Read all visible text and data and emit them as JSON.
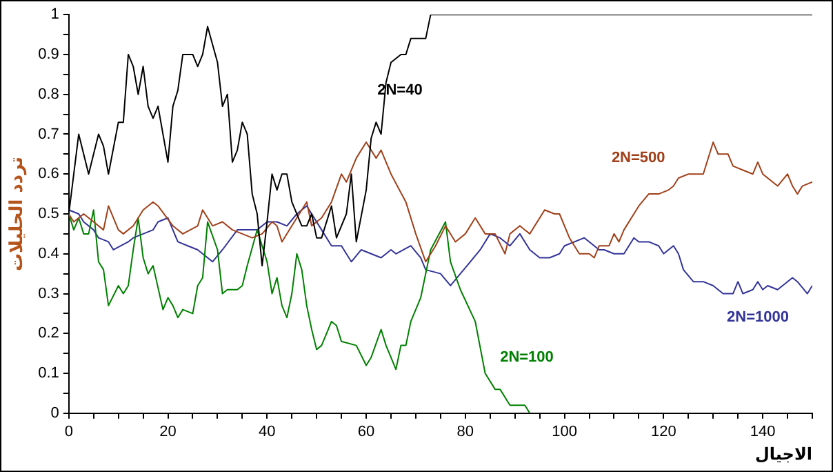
{
  "chart_data": {
    "type": "line",
    "xlabel": "الاجيال",
    "ylabel": "تردد الحليلات",
    "xlim": [
      0,
      150
    ],
    "ylim": [
      0,
      1
    ],
    "xticks": [
      0,
      {
        "value": 5,
        "label": null
      },
      {
        "value": 10,
        "label": null
      },
      {
        "value": 15,
        "label": null
      },
      20,
      {
        "value": 25,
        "label": null
      },
      {
        "value": 30,
        "label": null
      },
      {
        "value": 35,
        "label": null
      },
      40,
      {
        "value": 45,
        "label": null
      },
      {
        "value": 50,
        "label": null
      },
      {
        "value": 55,
        "label": null
      },
      60,
      {
        "value": 65,
        "label": null
      },
      {
        "value": 70,
        "label": null
      },
      {
        "value": 75,
        "label": null
      },
      80,
      {
        "value": 85,
        "label": null
      },
      {
        "value": 90,
        "label": null
      },
      {
        "value": 95,
        "label": null
      },
      100,
      {
        "value": 105,
        "label": null
      },
      {
        "value": 110,
        "label": null
      },
      {
        "value": 115,
        "label": null
      },
      120,
      {
        "value": 125,
        "label": null
      },
      {
        "value": 130,
        "label": null
      },
      {
        "value": 135,
        "label": null
      },
      140,
      {
        "value": 145,
        "label": null
      },
      {
        "value": 150,
        "label": null
      }
    ],
    "yticks": [
      0,
      {
        "value": 0.05,
        "label": null
      },
      0.1,
      {
        "value": 0.15,
        "label": null
      },
      0.2,
      {
        "value": 0.25,
        "label": null
      },
      0.3,
      {
        "value": 0.35,
        "label": null
      },
      0.4,
      {
        "value": 0.45,
        "label": null
      },
      0.5,
      {
        "value": 0.55,
        "label": null
      },
      0.6,
      {
        "value": 0.65,
        "label": null
      },
      0.7,
      {
        "value": 0.75,
        "label": null
      },
      0.8,
      {
        "value": 0.85,
        "label": null
      },
      0.9,
      {
        "value": 0.95,
        "label": null
      },
      1
    ],
    "grid": false,
    "legend": false,
    "marker": "none",
    "line_style": "solid",
    "series": [
      {
        "name": "2N=40",
        "color": "#000000",
        "x": [
          0,
          2,
          4,
          6,
          7,
          8,
          10,
          11,
          12,
          13,
          14,
          15,
          16,
          17,
          18,
          20,
          21,
          22,
          23,
          25,
          26,
          27,
          28,
          30,
          31,
          32,
          33,
          34,
          35,
          36,
          37,
          38,
          39,
          40,
          41,
          42,
          43,
          44,
          45,
          47,
          48,
          49,
          50,
          51,
          53,
          54,
          56,
          57,
          58,
          60,
          61,
          62,
          63,
          64,
          65,
          67,
          68,
          69,
          72,
          73,
          150
        ],
        "values": [
          0.5,
          0.7,
          0.6,
          0.7,
          0.67,
          0.6,
          0.73,
          0.73,
          0.9,
          0.87,
          0.8,
          0.87,
          0.77,
          0.74,
          0.77,
          0.63,
          0.77,
          0.81,
          0.9,
          0.9,
          0.87,
          0.9,
          0.97,
          0.88,
          0.77,
          0.8,
          0.63,
          0.66,
          0.73,
          0.7,
          0.55,
          0.5,
          0.37,
          0.48,
          0.6,
          0.56,
          0.6,
          0.6,
          0.53,
          0.47,
          0.47,
          0.5,
          0.44,
          0.44,
          0.52,
          0.44,
          0.5,
          0.6,
          0.43,
          0.56,
          0.69,
          0.73,
          0.7,
          0.83,
          0.88,
          0.9,
          0.9,
          0.94,
          0.94,
          1,
          1
        ]
      },
      {
        "name": "2N=500",
        "color": "#a0401a",
        "x": [
          0,
          1,
          3,
          5,
          7,
          8,
          10,
          11,
          13,
          15,
          16,
          17,
          18,
          21,
          23,
          26,
          27,
          29,
          31,
          33,
          35,
          37,
          39,
          41,
          42,
          43,
          45,
          46,
          48,
          49,
          51,
          53,
          55,
          56,
          58,
          60,
          62,
          63,
          65,
          68,
          70,
          72,
          74,
          76,
          78,
          80,
          82,
          84,
          86,
          88,
          89,
          91,
          93,
          96,
          98,
          99,
          101,
          103,
          105,
          106,
          107,
          109,
          110,
          111,
          112,
          115,
          117,
          119,
          121,
          122,
          123,
          125,
          128,
          130,
          131,
          133,
          134,
          136,
          138,
          139,
          140,
          142,
          143,
          145,
          146,
          147,
          148,
          150
        ],
        "values": [
          0.5,
          0.48,
          0.5,
          0.48,
          0.46,
          0.52,
          0.46,
          0.45,
          0.47,
          0.51,
          0.52,
          0.53,
          0.52,
          0.47,
          0.45,
          0.47,
          0.51,
          0.47,
          0.48,
          0.46,
          0.45,
          0.44,
          0.45,
          0.48,
          0.47,
          0.43,
          0.47,
          0.49,
          0.53,
          0.47,
          0.49,
          0.53,
          0.6,
          0.58,
          0.64,
          0.68,
          0.64,
          0.66,
          0.6,
          0.53,
          0.45,
          0.38,
          0.42,
          0.47,
          0.43,
          0.45,
          0.49,
          0.45,
          0.45,
          0.4,
          0.45,
          0.47,
          0.45,
          0.51,
          0.5,
          0.5,
          0.44,
          0.4,
          0.4,
          0.39,
          0.42,
          0.42,
          0.45,
          0.43,
          0.46,
          0.52,
          0.55,
          0.55,
          0.56,
          0.57,
          0.59,
          0.6,
          0.6,
          0.68,
          0.65,
          0.65,
          0.62,
          0.61,
          0.6,
          0.63,
          0.6,
          0.58,
          0.57,
          0.6,
          0.57,
          0.55,
          0.57,
          0.58
        ]
      },
      {
        "name": "2N=100",
        "color": "#008000",
        "x": [
          0,
          1,
          2,
          3,
          4,
          5,
          6,
          7,
          8,
          10,
          11,
          12,
          13,
          14,
          15,
          16,
          17,
          19,
          20,
          21,
          22,
          23,
          25,
          26,
          27,
          28,
          30,
          31,
          32,
          34,
          35,
          36,
          38,
          39,
          40,
          41,
          42,
          43,
          44,
          45,
          46,
          47,
          48,
          49,
          50,
          51,
          53,
          54,
          55,
          58,
          60,
          61,
          63,
          64,
          66,
          67,
          68,
          69,
          71,
          73,
          76,
          77,
          79,
          82,
          84,
          86,
          87,
          89,
          92,
          93
        ],
        "values": [
          0.5,
          0.46,
          0.49,
          0.45,
          0.45,
          0.51,
          0.38,
          0.36,
          0.27,
          0.32,
          0.3,
          0.32,
          0.41,
          0.49,
          0.39,
          0.35,
          0.37,
          0.26,
          0.29,
          0.27,
          0.24,
          0.26,
          0.25,
          0.32,
          0.34,
          0.48,
          0.41,
          0.3,
          0.31,
          0.31,
          0.32,
          0.37,
          0.46,
          0.42,
          0.38,
          0.3,
          0.34,
          0.27,
          0.24,
          0.3,
          0.4,
          0.36,
          0.27,
          0.21,
          0.16,
          0.17,
          0.23,
          0.22,
          0.18,
          0.17,
          0.12,
          0.14,
          0.21,
          0.17,
          0.11,
          0.17,
          0.17,
          0.23,
          0.29,
          0.41,
          0.48,
          0.38,
          0.31,
          0.23,
          0.1,
          0.06,
          0.06,
          0.02,
          0.02,
          0
        ]
      },
      {
        "name": "2N=1000",
        "color": "#333399",
        "x": [
          0,
          2,
          3,
          5,
          6,
          8,
          9,
          12,
          13,
          15,
          17,
          18,
          20,
          22,
          24,
          26,
          28,
          29,
          31,
          34,
          36,
          38,
          40,
          42,
          44,
          46,
          48,
          51,
          53,
          55,
          57,
          59,
          61,
          63,
          65,
          66,
          69,
          71,
          72,
          75,
          77,
          79,
          81,
          83,
          85,
          87,
          89,
          91,
          93,
          95,
          97,
          99,
          100,
          104,
          105,
          107,
          108,
          110,
          112,
          114,
          115,
          117,
          119,
          120,
          122,
          123,
          124,
          126,
          128,
          130,
          132,
          134,
          135,
          136,
          138,
          139,
          140,
          141,
          143,
          145,
          146,
          147,
          149,
          150
        ],
        "values": [
          0.51,
          0.5,
          0.48,
          0.46,
          0.44,
          0.43,
          0.41,
          0.43,
          0.44,
          0.45,
          0.46,
          0.48,
          0.49,
          0.43,
          0.42,
          0.41,
          0.39,
          0.38,
          0.41,
          0.46,
          0.46,
          0.46,
          0.48,
          0.48,
          0.47,
          0.5,
          0.52,
          0.46,
          0.42,
          0.42,
          0.38,
          0.41,
          0.4,
          0.39,
          0.41,
          0.4,
          0.42,
          0.39,
          0.36,
          0.35,
          0.32,
          0.35,
          0.38,
          0.41,
          0.45,
          0.44,
          0.42,
          0.45,
          0.41,
          0.39,
          0.39,
          0.4,
          0.42,
          0.44,
          0.43,
          0.41,
          0.41,
          0.4,
          0.4,
          0.44,
          0.43,
          0.43,
          0.42,
          0.4,
          0.42,
          0.4,
          0.36,
          0.33,
          0.33,
          0.32,
          0.3,
          0.3,
          0.33,
          0.3,
          0.31,
          0.33,
          0.31,
          0.32,
          0.31,
          0.33,
          0.34,
          0.33,
          0.3,
          0.32
        ]
      }
    ]
  }
}
